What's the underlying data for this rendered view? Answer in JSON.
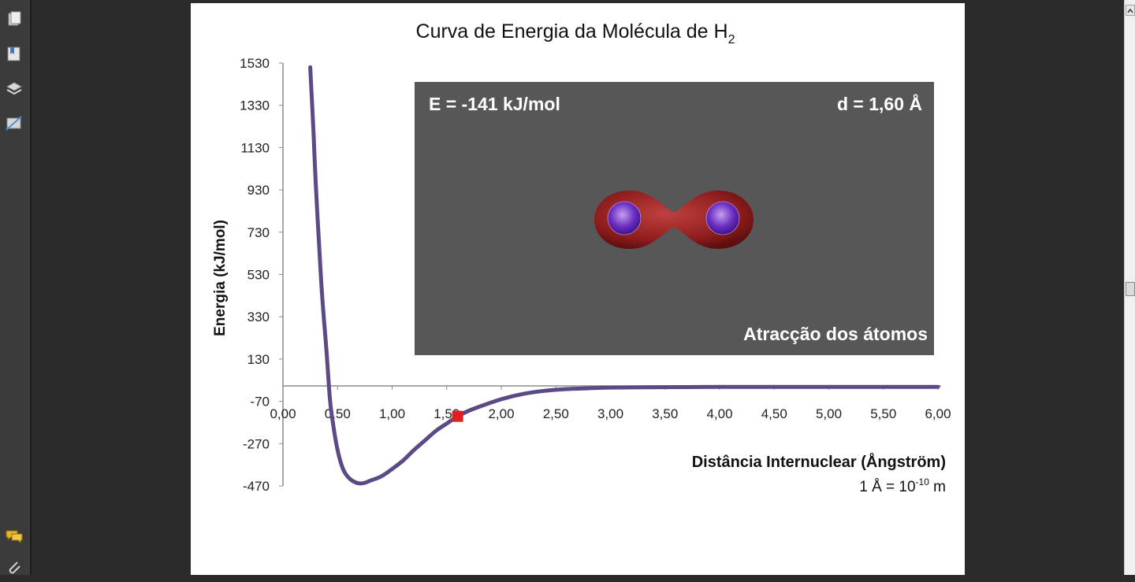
{
  "toolbar": {
    "icons": [
      "pages-icon",
      "bookmarks-icon",
      "layers-icon",
      "signatures-icon",
      "comments-icon",
      "attachment-icon"
    ]
  },
  "chart_data": {
    "type": "line",
    "title": "Curva de Energia da Molécula de H",
    "title_subscript": "2",
    "xlabel": "Distância Internuclear (Ångström)",
    "xlabel_note": "1 Å = 10",
    "xlabel_note_exp": "-10",
    "xlabel_note_unit": " m",
    "ylabel": "Energia (kJ/mol)",
    "xlim": [
      0,
      6
    ],
    "ylim": [
      -470,
      1530
    ],
    "x_ticks": [
      "0,00",
      "0,50",
      "1,00",
      "1,50",
      "2,00",
      "2,50",
      "3,00",
      "3,50",
      "4,00",
      "4,50",
      "5,00",
      "5,50",
      "6,00"
    ],
    "y_ticks": [
      "1530",
      "1330",
      "1130",
      "930",
      "730",
      "530",
      "330",
      "130",
      "-70",
      "-270",
      "-470"
    ],
    "series": [
      {
        "color": "#5b4a86",
        "x": [
          0.25,
          0.28,
          0.3,
          0.33,
          0.36,
          0.4,
          0.43,
          0.46,
          0.5,
          0.55,
          0.6,
          0.65,
          0.7,
          0.75,
          0.8,
          0.9,
          1.0,
          1.1,
          1.2,
          1.3,
          1.4,
          1.5,
          1.6,
          1.7,
          1.8,
          2.0,
          2.2,
          2.4,
          2.6,
          2.8,
          3.0,
          3.5,
          4.0,
          4.5,
          5.0,
          5.5,
          6.0
        ],
        "y": [
          1510,
          1200,
          960,
          680,
          420,
          160,
          -60,
          -180,
          -300,
          -390,
          -430,
          -450,
          -458,
          -455,
          -445,
          -425,
          -390,
          -350,
          -300,
          -255,
          -210,
          -175,
          -141,
          -115,
          -95,
          -60,
          -35,
          -20,
          -12,
          -8,
          -5,
          -3,
          -2,
          -2,
          -2,
          -2,
          -2
        ]
      }
    ],
    "marker": {
      "x": 1.6,
      "y": -141,
      "color": "#dd1f1f"
    },
    "inset": {
      "energy_label": "E = -141 kJ/mol",
      "distance_label": "d = 1,60 Å",
      "caption": "Atracção dos átomos",
      "background": "#575757"
    }
  }
}
